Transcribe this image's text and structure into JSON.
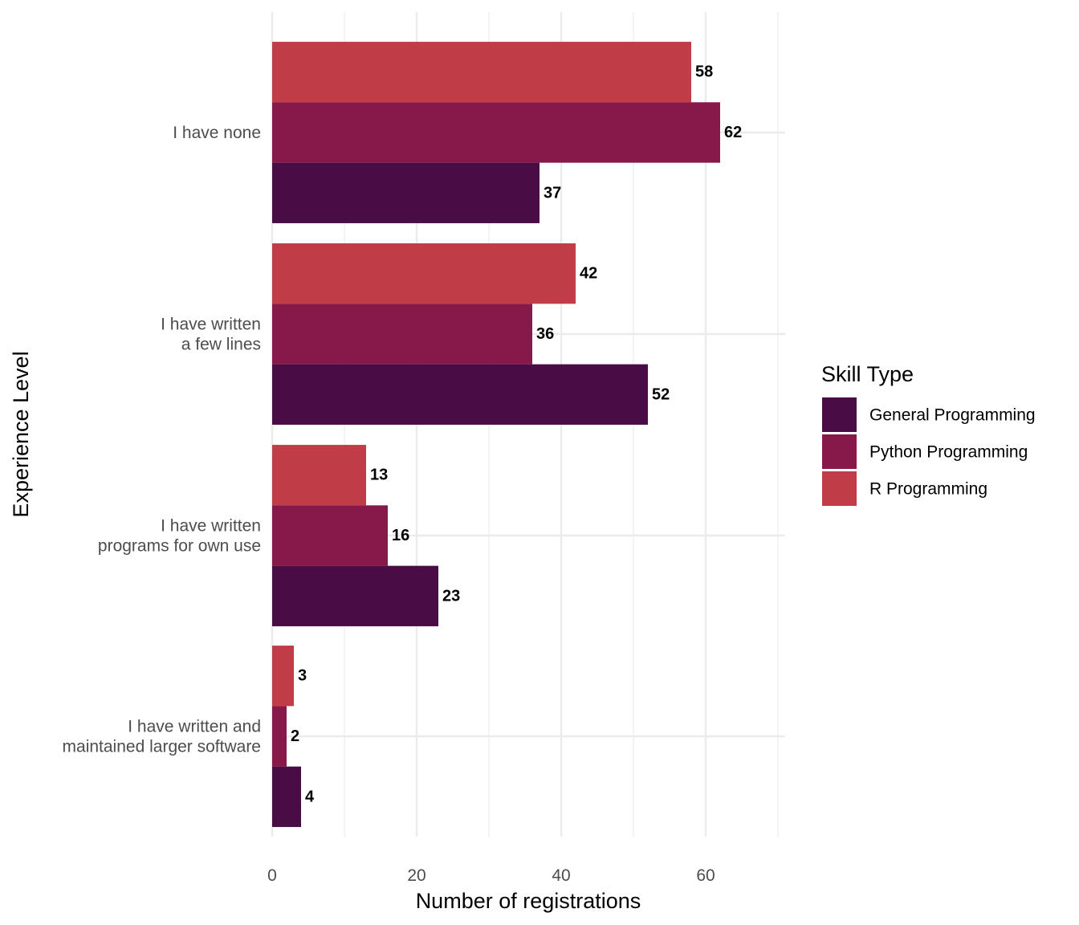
{
  "chart_data": {
    "type": "bar",
    "orientation": "horizontal",
    "title": "",
    "xlabel": "Number of registrations",
    "ylabel": "Experience Level",
    "xlim": [
      0,
      71
    ],
    "x_ticks": [
      "0",
      "20",
      "40",
      "60"
    ],
    "grid": true,
    "categories": [
      [
        "I have none"
      ],
      [
        "I have written",
        "a few lines"
      ],
      [
        "I have written",
        "programs for own use"
      ],
      [
        "I have written and",
        "maintained larger software"
      ]
    ],
    "series": [
      {
        "name": "R Programming",
        "color": "#C03D48",
        "values": [
          58,
          42,
          13,
          3
        ]
      },
      {
        "name": "Python Programming",
        "color": "#86194A",
        "values": [
          62,
          36,
          16,
          2
        ]
      },
      {
        "name": "General Programming",
        "color": "#4A0C45",
        "values": [
          37,
          52,
          23,
          4
        ]
      }
    ],
    "legend": {
      "title": "Skill Type",
      "position": "right",
      "order": [
        "General Programming",
        "Python Programming",
        "R Programming"
      ]
    }
  }
}
